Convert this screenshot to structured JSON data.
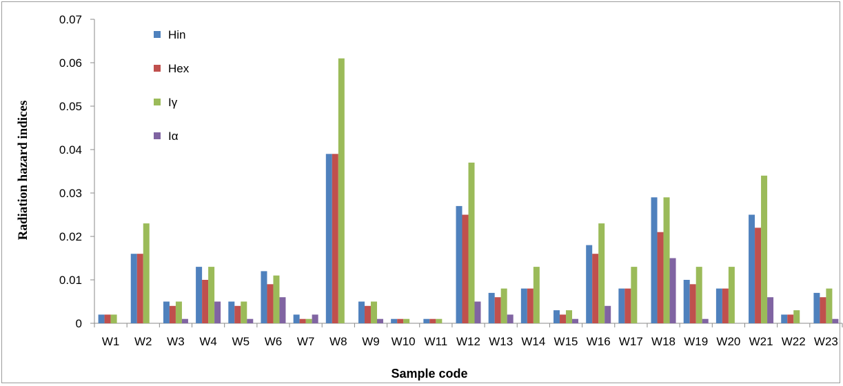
{
  "chart_data": {
    "type": "bar",
    "xlabel": "Sample code",
    "ylabel": "Radiation hazard indices",
    "ylim": [
      0,
      0.07
    ],
    "yticks": [
      "0",
      "0.01",
      "0.02",
      "0.03",
      "0.04",
      "0.05",
      "0.06",
      "0.07"
    ],
    "grid": false,
    "legend_position": "top-left",
    "categories": [
      "W1",
      "W2",
      "W3",
      "W4",
      "W5",
      "W6",
      "W7",
      "W8",
      "W9",
      "W10",
      "W11",
      "W12",
      "W13",
      "W14",
      "W15",
      "W16",
      "W17",
      "W18",
      "W19",
      "W20",
      "W21",
      "W22",
      "W23"
    ],
    "series": [
      {
        "name": "Hin",
        "color": "#4f81bd",
        "values": [
          0.002,
          0.016,
          0.005,
          0.013,
          0.005,
          0.012,
          0.002,
          0.039,
          0.005,
          0.001,
          0.001,
          0.027,
          0.007,
          0.008,
          0.003,
          0.018,
          0.008,
          0.029,
          0.01,
          0.008,
          0.025,
          0.002,
          0.007
        ]
      },
      {
        "name": "Hex",
        "color": "#c0504d",
        "values": [
          0.002,
          0.016,
          0.004,
          0.01,
          0.004,
          0.009,
          0.001,
          0.039,
          0.004,
          0.001,
          0.001,
          0.025,
          0.006,
          0.008,
          0.002,
          0.016,
          0.008,
          0.021,
          0.009,
          0.008,
          0.022,
          0.002,
          0.006
        ]
      },
      {
        "name": "Iγ",
        "color": "#9bbb59",
        "values": [
          0.002,
          0.023,
          0.005,
          0.013,
          0.005,
          0.011,
          0.001,
          0.061,
          0.005,
          0.001,
          0.001,
          0.037,
          0.008,
          0.013,
          0.003,
          0.023,
          0.013,
          0.029,
          0.013,
          0.013,
          0.034,
          0.003,
          0.008
        ]
      },
      {
        "name": "Iα",
        "color": "#8064a2",
        "values": [
          0,
          0,
          0.001,
          0.005,
          0.001,
          0.006,
          0.002,
          0,
          0.001,
          0,
          0,
          0.005,
          0.002,
          0,
          0.001,
          0.004,
          0,
          0.015,
          0.001,
          0,
          0.006,
          0,
          0.001
        ]
      }
    ]
  }
}
